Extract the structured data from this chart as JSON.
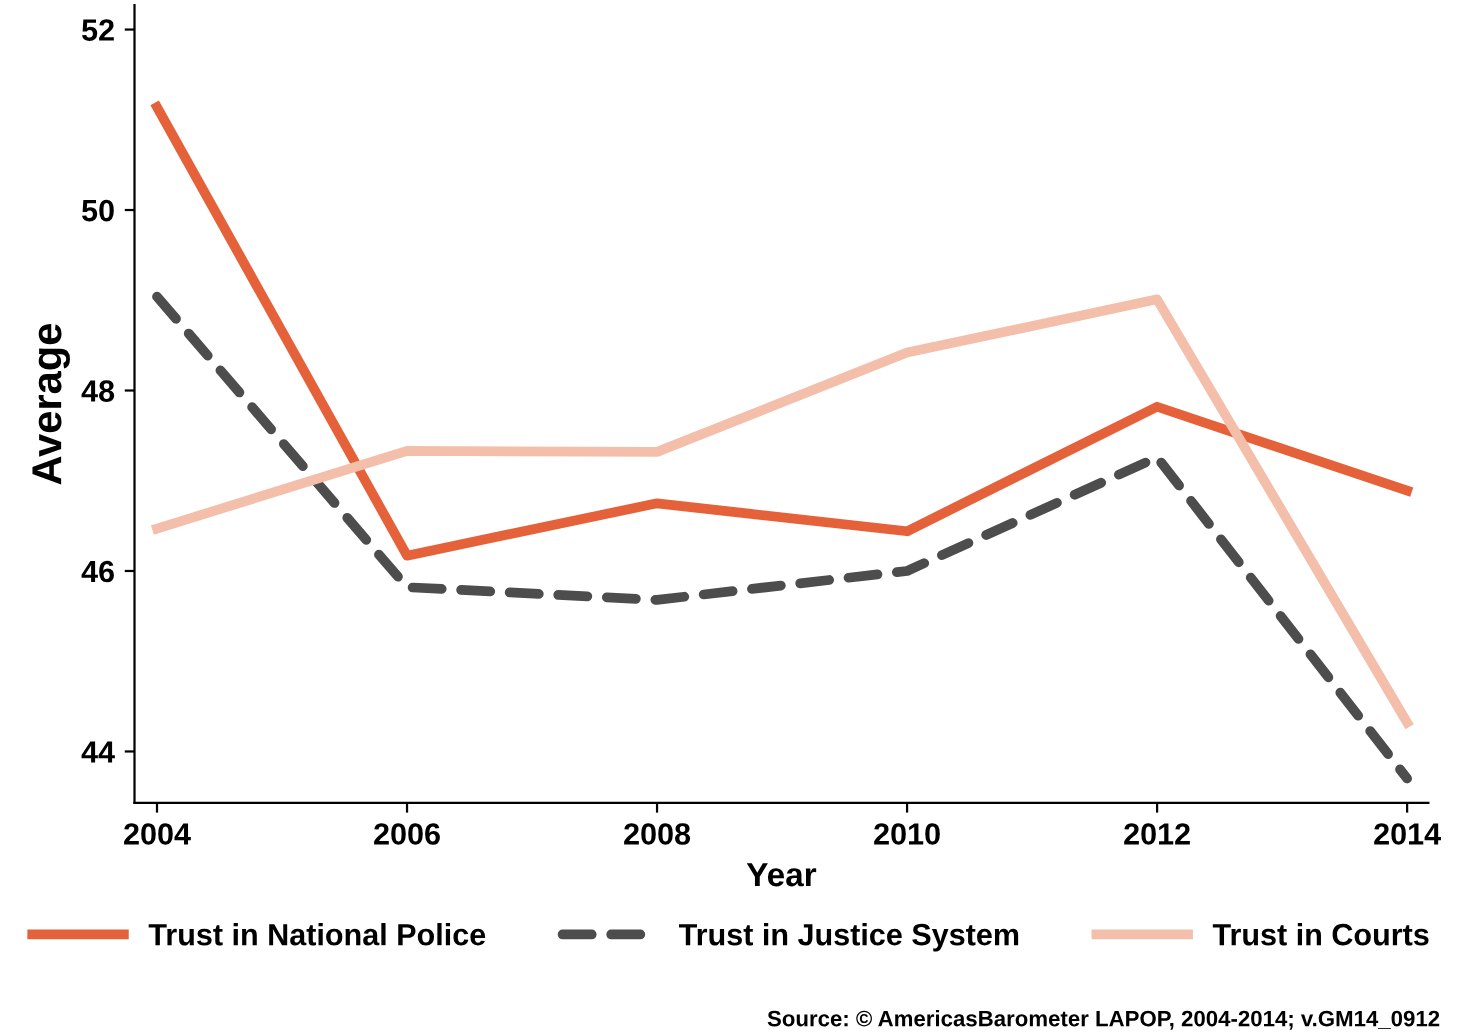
{
  "chart_data": {
    "type": "line",
    "xlabel": "Year",
    "ylabel": "Average",
    "x": [
      2004,
      2006,
      2008,
      2010,
      2012,
      2014
    ],
    "series": [
      {
        "name": "Trust in National Police",
        "color": "#e5613a",
        "line_style": "solid",
        "values": [
          51.14,
          46.17,
          46.75,
          46.44,
          47.82,
          46.89
        ]
      },
      {
        "name": "Trust in Justice System",
        "color": "#4d4d4d",
        "line_style": "dashed",
        "values": [
          49.04,
          45.82,
          45.68,
          46.0,
          47.26,
          43.7
        ]
      },
      {
        "name": "Trust in Courts",
        "color": "#f4bfaa",
        "line_style": "solid",
        "values": [
          46.47,
          47.33,
          47.32,
          48.42,
          49.01,
          44.32
        ]
      }
    ],
    "xlim": [
      2003.82,
      2014.17
    ],
    "xticks": [
      2004,
      2006,
      2008,
      2010,
      2012,
      2014
    ],
    "ylim": [
      43.43,
      52.27
    ],
    "yticks": [
      44,
      46,
      48,
      50,
      52
    ],
    "grid": false,
    "legend": "bottom",
    "marker": "none",
    "annotations": [
      "Source: © AmericasBarometer LAPOP, 2004-2014; v.GM14_0912"
    ]
  }
}
